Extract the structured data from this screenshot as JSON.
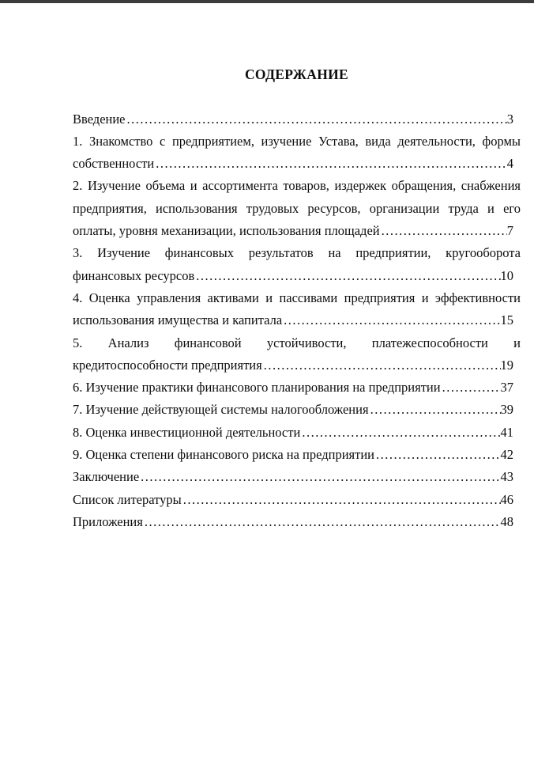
{
  "page": {
    "title": "СОДЕРЖАНИЕ"
  },
  "toc": {
    "entries": [
      {
        "lines": [
          "Введение"
        ],
        "page": "3"
      },
      {
        "lines": [
          "1. Знакомство с предприятием, изучение Устава, вида деятельности, формы",
          "собственности"
        ],
        "page": "4"
      },
      {
        "lines": [
          "2. Изучение объема и ассортимента товаров, издержек обращения, снабжения",
          "предприятия, использования трудовых ресурсов, организации труда и его",
          "оплаты, уровня механизации, использования площадей"
        ],
        "page": "7"
      },
      {
        "lines": [
          "3. Изучение финансовых результатов на предприятии, кругооборота",
          "финансовых ресурсов"
        ],
        "page": "10"
      },
      {
        "lines": [
          "4. Оценка управления активами и пассивами предприятия и эффективности",
          "использования имущества и капитала"
        ],
        "page": "15"
      },
      {
        "lines": [
          "5. Анализ финансовой устойчивости, платежеспособности и",
          "кредитоспособности предприятия"
        ],
        "page": "19"
      },
      {
        "lines": [
          "6. Изучение практики финансового планирования на предприятии"
        ],
        "page": "37"
      },
      {
        "lines": [
          "7. Изучение действующей системы налогообложения"
        ],
        "page": "39"
      },
      {
        "lines": [
          "8. Оценка инвестиционной деятельности"
        ],
        "page": "41"
      },
      {
        "lines": [
          "9. Оценка степени финансового риска на предприятии"
        ],
        "page": "42"
      },
      {
        "lines": [
          "Заключение"
        ],
        "page": "43"
      },
      {
        "lines": [
          "Список литературы"
        ],
        "page": "46"
      },
      {
        "lines": [
          "Приложения"
        ],
        "page": "48"
      }
    ]
  },
  "colors": {
    "text": "#0d0d0d",
    "top_bar": "#3c3c3c",
    "page_bg": "#ffffff"
  }
}
